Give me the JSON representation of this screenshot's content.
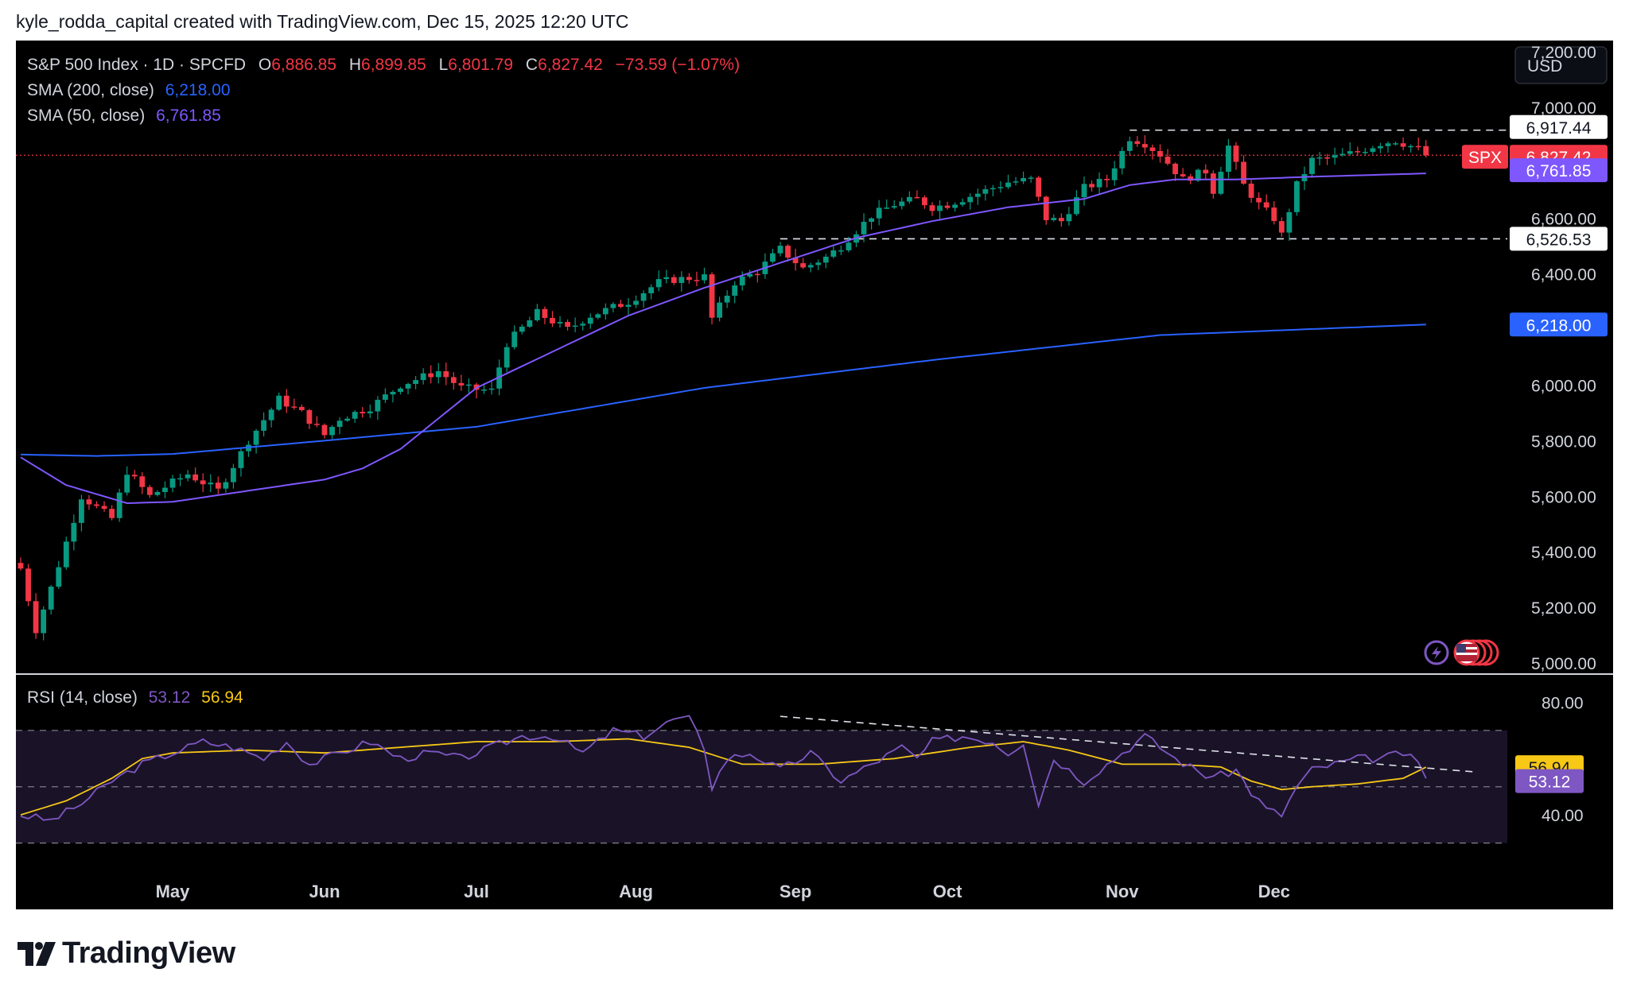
{
  "header": {
    "text": "kyle_rodda_capital created with TradingView.com, Dec 15, 2025 12:20 UTC"
  },
  "brand": {
    "name": "TradingView"
  },
  "colors": {
    "bg": "#000000",
    "up": "#089981",
    "down": "#f23645",
    "sma50": "#7e57ff",
    "sma200": "#2962ff",
    "rsi": "#7e57c2",
    "rsi_ma": "#f7c815",
    "text": "#d1d4dc"
  },
  "legend": {
    "symbol": "S&P 500 Index · 1D · SPCFD",
    "o_label": "O",
    "o_value": "6,886.85",
    "h_label": "H",
    "h_value": "6,899.85",
    "l_label": "L",
    "l_value": "6,801.79",
    "c_label": "C",
    "c_value": "6,827.42",
    "change": "−73.59 (−1.07%)",
    "sma200_label": "SMA (200, close)",
    "sma200_value": "6,218.00",
    "sma50_label": "SMA (50, close)",
    "sma50_value": "6,761.85"
  },
  "rsi_legend": {
    "label": "RSI (14, close)",
    "value": "53.12",
    "ma_value": "56.94"
  },
  "currency_button": "USD",
  "price_badges": {
    "resistance": "6,917.44",
    "spx_tag": "SPX",
    "close": "6,827.42",
    "sma50": "6,761.85",
    "support": "6,526.53",
    "sma200": "6,218.00",
    "rsi_ma": "56.94",
    "rsi": "53.12"
  },
  "y_ticks": [
    "7,200.00",
    "7,000.00",
    "6,600.00",
    "6,400.00",
    "6,000.00",
    "5,800.00",
    "5,600.00",
    "5,400.00",
    "5,200.00",
    "5,000.00"
  ],
  "rsi_ticks": [
    "80.00",
    "40.00"
  ],
  "x_ticks": [
    "May",
    "Jun",
    "Jul",
    "Aug",
    "Sep",
    "Oct",
    "Nov",
    "Dec"
  ],
  "chart_data": {
    "type": "candlestick",
    "symbol": "S&P 500 Index",
    "interval": "1D",
    "ylim": [
      4960,
      7240
    ],
    "rsi_ylim": [
      20,
      90
    ],
    "rsi_bands": [
      30,
      50,
      70
    ],
    "support": 6526.53,
    "resistance": 6917.44,
    "last_close": 6827.42,
    "sma200_last": 6218.0,
    "sma50_last": 6761.85,
    "rsi_last": 53.12,
    "rsi_ma_last": 56.94,
    "month_starts": {
      "May": 20,
      "Jun": 40,
      "Jul": 60,
      "Aug": 81,
      "Sep": 102,
      "Oct": 122,
      "Nov": 145,
      "Dec": 165
    },
    "price_anchors": [
      [
        0,
        5340
      ],
      [
        2,
        5120
      ],
      [
        4,
        5270
      ],
      [
        8,
        5600
      ],
      [
        12,
        5520
      ],
      [
        14,
        5690
      ],
      [
        17,
        5600
      ],
      [
        20,
        5650
      ],
      [
        22,
        5680
      ],
      [
        26,
        5620
      ],
      [
        30,
        5800
      ],
      [
        34,
        5950
      ],
      [
        37,
        5900
      ],
      [
        40,
        5820
      ],
      [
        42,
        5880
      ],
      [
        46,
        5920
      ],
      [
        50,
        6000
      ],
      [
        55,
        6050
      ],
      [
        58,
        5990
      ],
      [
        62,
        5980
      ],
      [
        64,
        6150
      ],
      [
        68,
        6260
      ],
      [
        72,
        6200
      ],
      [
        75,
        6250
      ],
      [
        80,
        6300
      ],
      [
        84,
        6370
      ],
      [
        86,
        6380
      ],
      [
        90,
        6390
      ],
      [
        91,
        6240
      ],
      [
        94,
        6370
      ],
      [
        97,
        6410
      ],
      [
        100,
        6490
      ],
      [
        103,
        6420
      ],
      [
        106,
        6460
      ],
      [
        108,
        6500
      ],
      [
        112,
        6610
      ],
      [
        115,
        6650
      ],
      [
        118,
        6670
      ],
      [
        120,
        6640
      ],
      [
        122,
        6650
      ],
      [
        126,
        6690
      ],
      [
        130,
        6730
      ],
      [
        133,
        6740
      ],
      [
        135,
        6600
      ],
      [
        137,
        6590
      ],
      [
        140,
        6710
      ],
      [
        143,
        6740
      ],
      [
        146,
        6890
      ],
      [
        148,
        6870
      ],
      [
        150,
        6830
      ],
      [
        153,
        6740
      ],
      [
        156,
        6770
      ],
      [
        157,
        6700
      ],
      [
        159,
        6860
      ],
      [
        161,
        6720
      ],
      [
        163,
        6650
      ],
      [
        165,
        6600
      ],
      [
        166,
        6540
      ],
      [
        168,
        6720
      ],
      [
        170,
        6810
      ],
      [
        173,
        6820
      ],
      [
        176,
        6840
      ],
      [
        179,
        6870
      ],
      [
        181,
        6880
      ],
      [
        184,
        6850
      ],
      [
        185,
        6827
      ]
    ],
    "sma200_anchors": [
      [
        0,
        5750
      ],
      [
        10,
        5745
      ],
      [
        20,
        5752
      ],
      [
        40,
        5800
      ],
      [
        60,
        5850
      ],
      [
        90,
        5990
      ],
      [
        120,
        6090
      ],
      [
        150,
        6180
      ],
      [
        185,
        6218
      ]
    ],
    "sma50_anchors": [
      [
        0,
        5740
      ],
      [
        6,
        5640
      ],
      [
        14,
        5575
      ],
      [
        20,
        5580
      ],
      [
        30,
        5620
      ],
      [
        40,
        5660
      ],
      [
        45,
        5700
      ],
      [
        50,
        5770
      ],
      [
        55,
        5880
      ],
      [
        60,
        5990
      ],
      [
        70,
        6120
      ],
      [
        80,
        6250
      ],
      [
        90,
        6350
      ],
      [
        100,
        6440
      ],
      [
        110,
        6530
      ],
      [
        120,
        6590
      ],
      [
        130,
        6640
      ],
      [
        140,
        6670
      ],
      [
        146,
        6720
      ],
      [
        152,
        6740
      ],
      [
        160,
        6740
      ],
      [
        170,
        6750
      ],
      [
        185,
        6761.85
      ]
    ],
    "rsi_anchors": [
      [
        0,
        40
      ],
      [
        4,
        38
      ],
      [
        8,
        44
      ],
      [
        12,
        52
      ],
      [
        16,
        58
      ],
      [
        20,
        62
      ],
      [
        24,
        66
      ],
      [
        28,
        64
      ],
      [
        32,
        60
      ],
      [
        35,
        66
      ],
      [
        38,
        58
      ],
      [
        42,
        62
      ],
      [
        46,
        66
      ],
      [
        50,
        60
      ],
      [
        54,
        62
      ],
      [
        58,
        60
      ],
      [
        62,
        64
      ],
      [
        66,
        68
      ],
      [
        70,
        68
      ],
      [
        74,
        62
      ],
      [
        78,
        70
      ],
      [
        82,
        68
      ],
      [
        86,
        74
      ],
      [
        88,
        74
      ],
      [
        90,
        64
      ],
      [
        91,
        50
      ],
      [
        93,
        60
      ],
      [
        96,
        62
      ],
      [
        100,
        56
      ],
      [
        104,
        62
      ],
      [
        108,
        52
      ],
      [
        112,
        58
      ],
      [
        116,
        64
      ],
      [
        118,
        60
      ],
      [
        120,
        66
      ],
      [
        124,
        68
      ],
      [
        128,
        66
      ],
      [
        130,
        62
      ],
      [
        132,
        66
      ],
      [
        134,
        44
      ],
      [
        136,
        60
      ],
      [
        140,
        52
      ],
      [
        144,
        60
      ],
      [
        148,
        68
      ],
      [
        150,
        64
      ],
      [
        152,
        60
      ],
      [
        156,
        54
      ],
      [
        158,
        54
      ],
      [
        160,
        56
      ],
      [
        162,
        48
      ],
      [
        164,
        42
      ],
      [
        166,
        40
      ],
      [
        168,
        50
      ],
      [
        170,
        56
      ],
      [
        173,
        58
      ],
      [
        176,
        60
      ],
      [
        179,
        60
      ],
      [
        182,
        62
      ],
      [
        184,
        58
      ],
      [
        185,
        53
      ]
    ],
    "rsi_ma_anchors": [
      [
        0,
        40
      ],
      [
        6,
        45
      ],
      [
        12,
        53
      ],
      [
        16,
        60
      ],
      [
        20,
        62
      ],
      [
        30,
        63
      ],
      [
        40,
        62
      ],
      [
        50,
        64
      ],
      [
        60,
        66
      ],
      [
        70,
        66
      ],
      [
        80,
        67
      ],
      [
        88,
        64
      ],
      [
        95,
        58
      ],
      [
        105,
        58
      ],
      [
        115,
        60
      ],
      [
        125,
        64
      ],
      [
        132,
        66
      ],
      [
        138,
        63
      ],
      [
        145,
        58
      ],
      [
        152,
        58
      ],
      [
        158,
        57
      ],
      [
        162,
        52
      ],
      [
        166,
        49
      ],
      [
        170,
        50
      ],
      [
        176,
        51
      ],
      [
        182,
        53
      ],
      [
        185,
        56.94
      ]
    ],
    "rsi_trendline": [
      [
        100,
        75
      ],
      [
        185,
        57
      ]
    ]
  }
}
